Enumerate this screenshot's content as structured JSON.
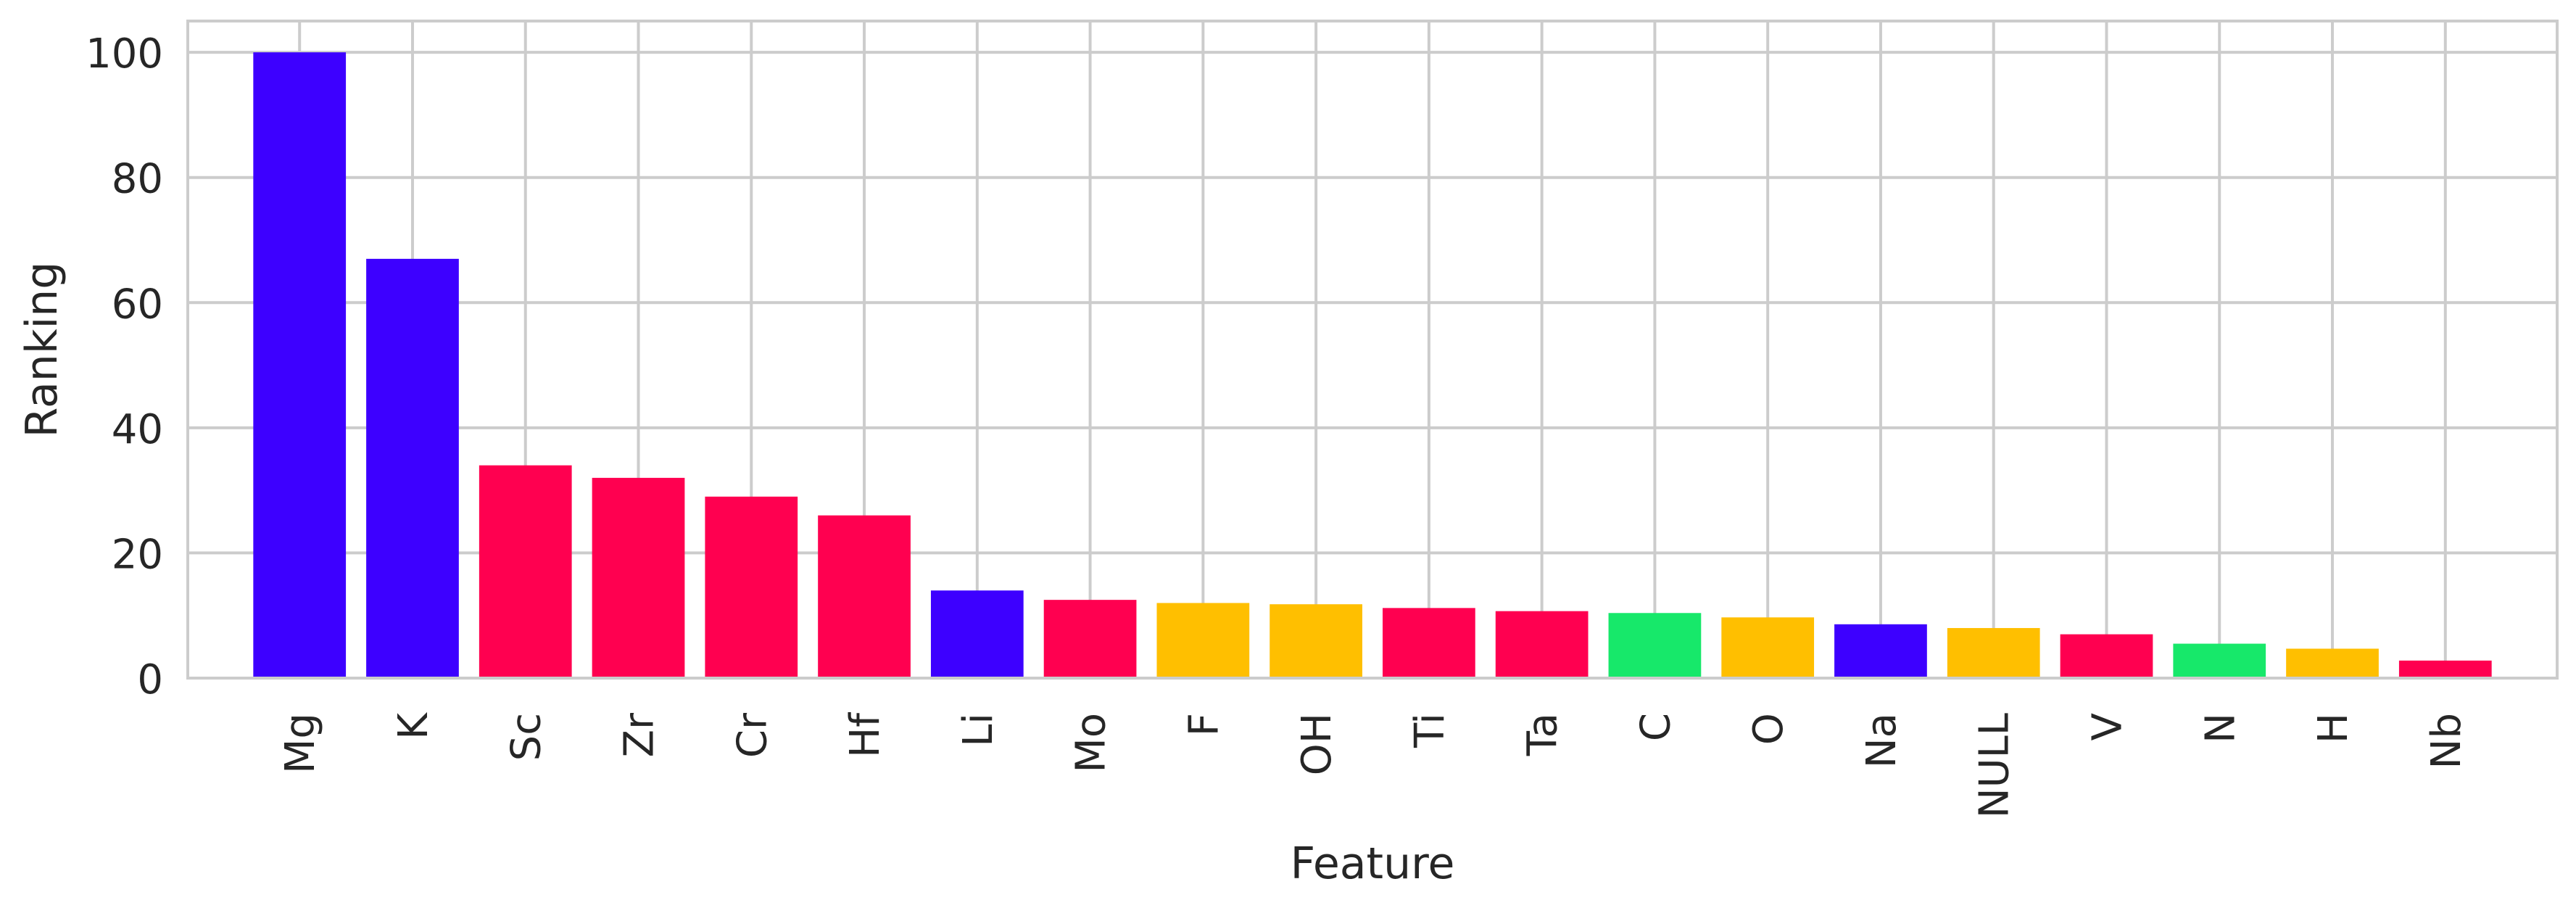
{
  "chart_data": {
    "type": "bar",
    "title": "",
    "xlabel": "Feature",
    "ylabel": "Ranking",
    "ylim": [
      0,
      105
    ],
    "yticks": [
      0,
      20,
      40,
      60,
      80,
      100
    ],
    "grid": true,
    "categories": [
      "Mg",
      "K",
      "Sc",
      "Zr",
      "Cr",
      "Hf",
      "Li",
      "Mo",
      "F",
      "OH",
      "Ti",
      "Ta",
      "C",
      "O",
      "Na",
      "NULL",
      "V",
      "N",
      "H",
      "Nb"
    ],
    "values": [
      100,
      67,
      34,
      32,
      29,
      26,
      14,
      12.5,
      12,
      11.8,
      11.2,
      10.7,
      10.4,
      9.7,
      8.6,
      8.0,
      7.0,
      5.5,
      4.7,
      2.8
    ],
    "colors": [
      "#3d00ff",
      "#3d00ff",
      "#ff0050",
      "#ff0050",
      "#ff0050",
      "#ff0050",
      "#3d00ff",
      "#ff0050",
      "#ffbf00",
      "#ffbf00",
      "#ff0050",
      "#ff0050",
      "#17e86a",
      "#ffbf00",
      "#3d00ff",
      "#ffbf00",
      "#ff0050",
      "#17e86a",
      "#ffbf00",
      "#ff0050"
    ]
  }
}
